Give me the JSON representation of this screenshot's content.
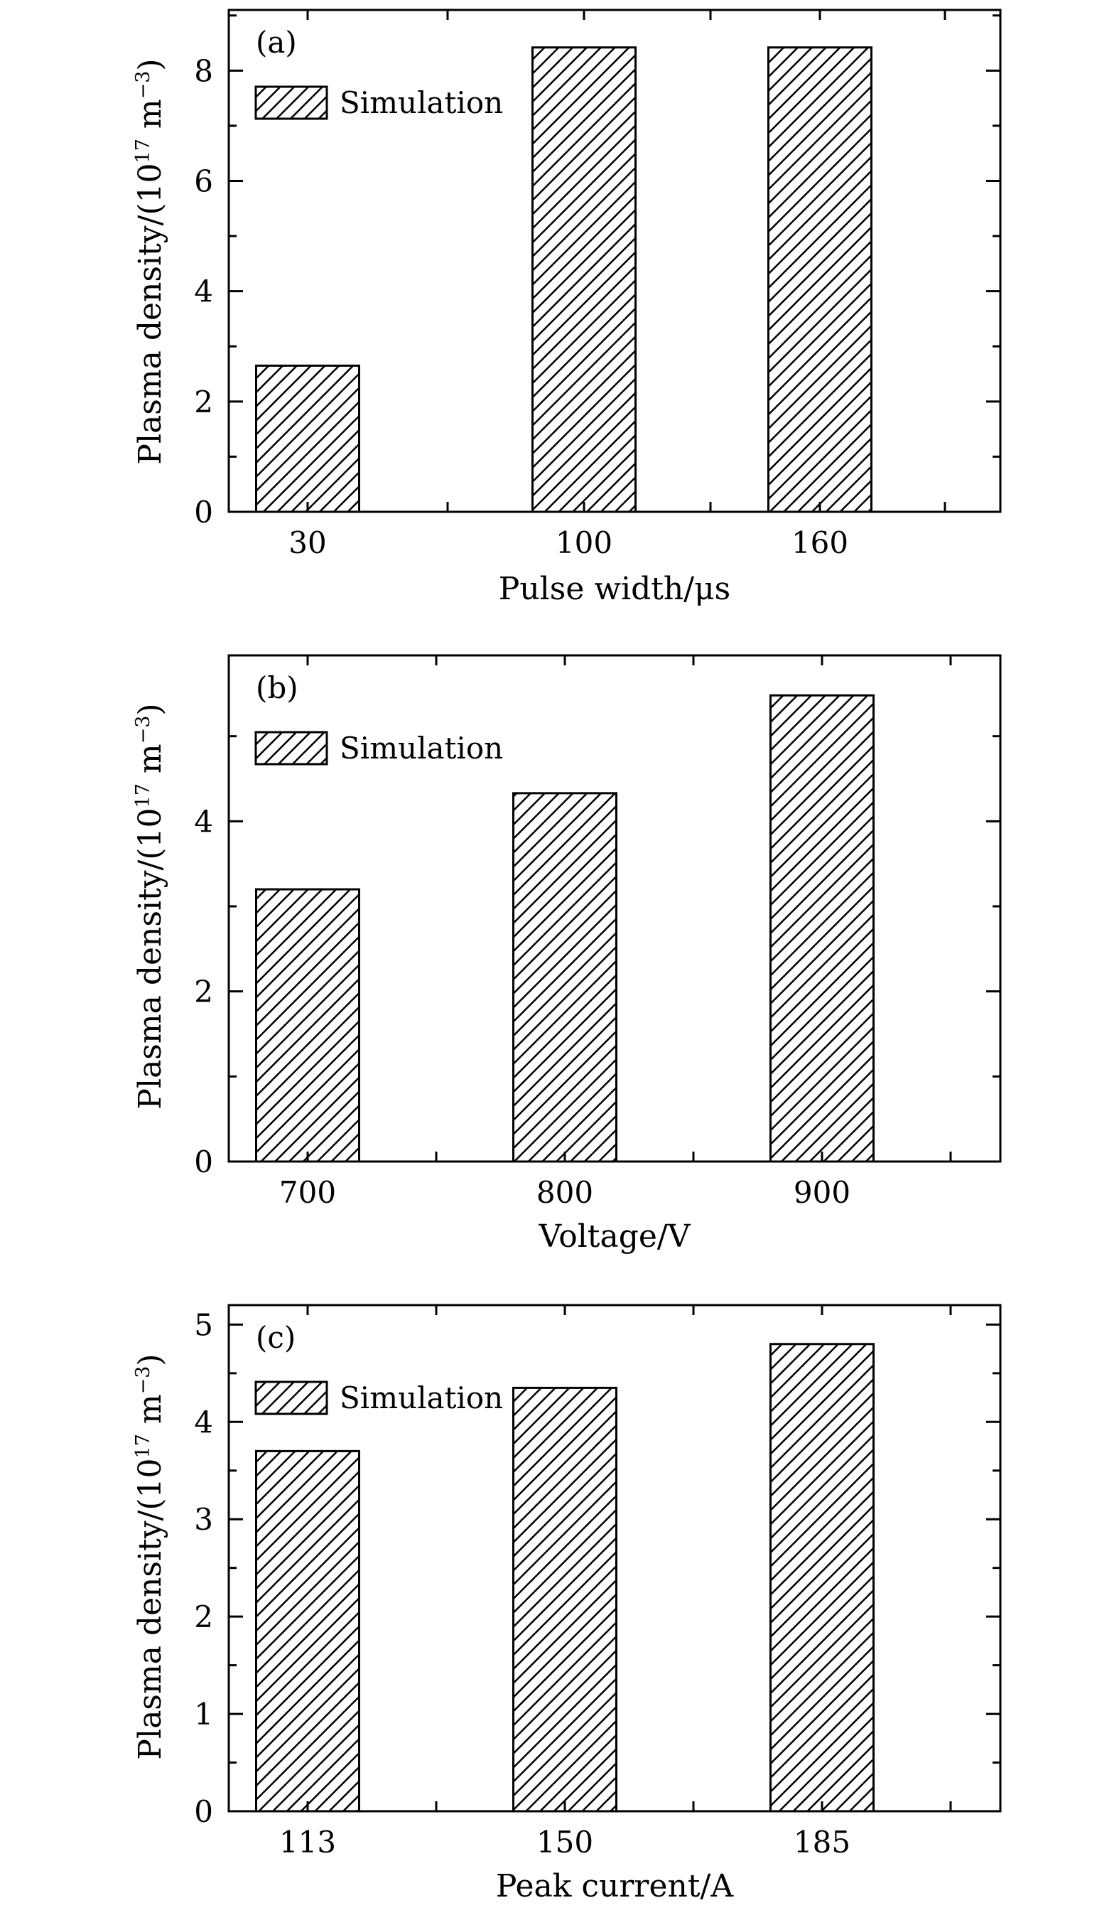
{
  "chart_data": [
    {
      "type": "bar",
      "panel_label": "(a)",
      "categories": [
        "30",
        "100",
        "160"
      ],
      "series": [
        {
          "name": "Simulation",
          "values": [
            2.65,
            8.42,
            8.42
          ]
        }
      ],
      "xlabel": "Pulse width/μs",
      "ylabel": "Plasma density/(10^17 m^-3)",
      "ylim": [
        0,
        9.1
      ],
      "yticks": [
        0,
        2,
        4,
        6,
        8
      ],
      "legend": "top-left"
    },
    {
      "type": "bar",
      "panel_label": "(b)",
      "categories": [
        "700",
        "800",
        "900"
      ],
      "series": [
        {
          "name": "Simulation",
          "values": [
            3.2,
            4.33,
            5.48
          ]
        }
      ],
      "xlabel": "Voltage/V",
      "ylabel": "Plasma density/(10^17 m^-3)",
      "ylim": [
        0,
        5.95
      ],
      "yticks": [
        0,
        2,
        4
      ],
      "legend": "top-left"
    },
    {
      "type": "bar",
      "panel_label": "(c)",
      "categories": [
        "113",
        "150",
        "185"
      ],
      "series": [
        {
          "name": "Simulation",
          "values": [
            3.7,
            4.35,
            4.8
          ]
        }
      ],
      "xlabel": "Peak current/A",
      "ylabel": "Plasma density/(10^17 m^-3)",
      "ylim": [
        0,
        5.2
      ],
      "yticks": [
        0,
        1,
        2,
        3,
        4,
        5
      ],
      "legend": "top-left"
    }
  ]
}
